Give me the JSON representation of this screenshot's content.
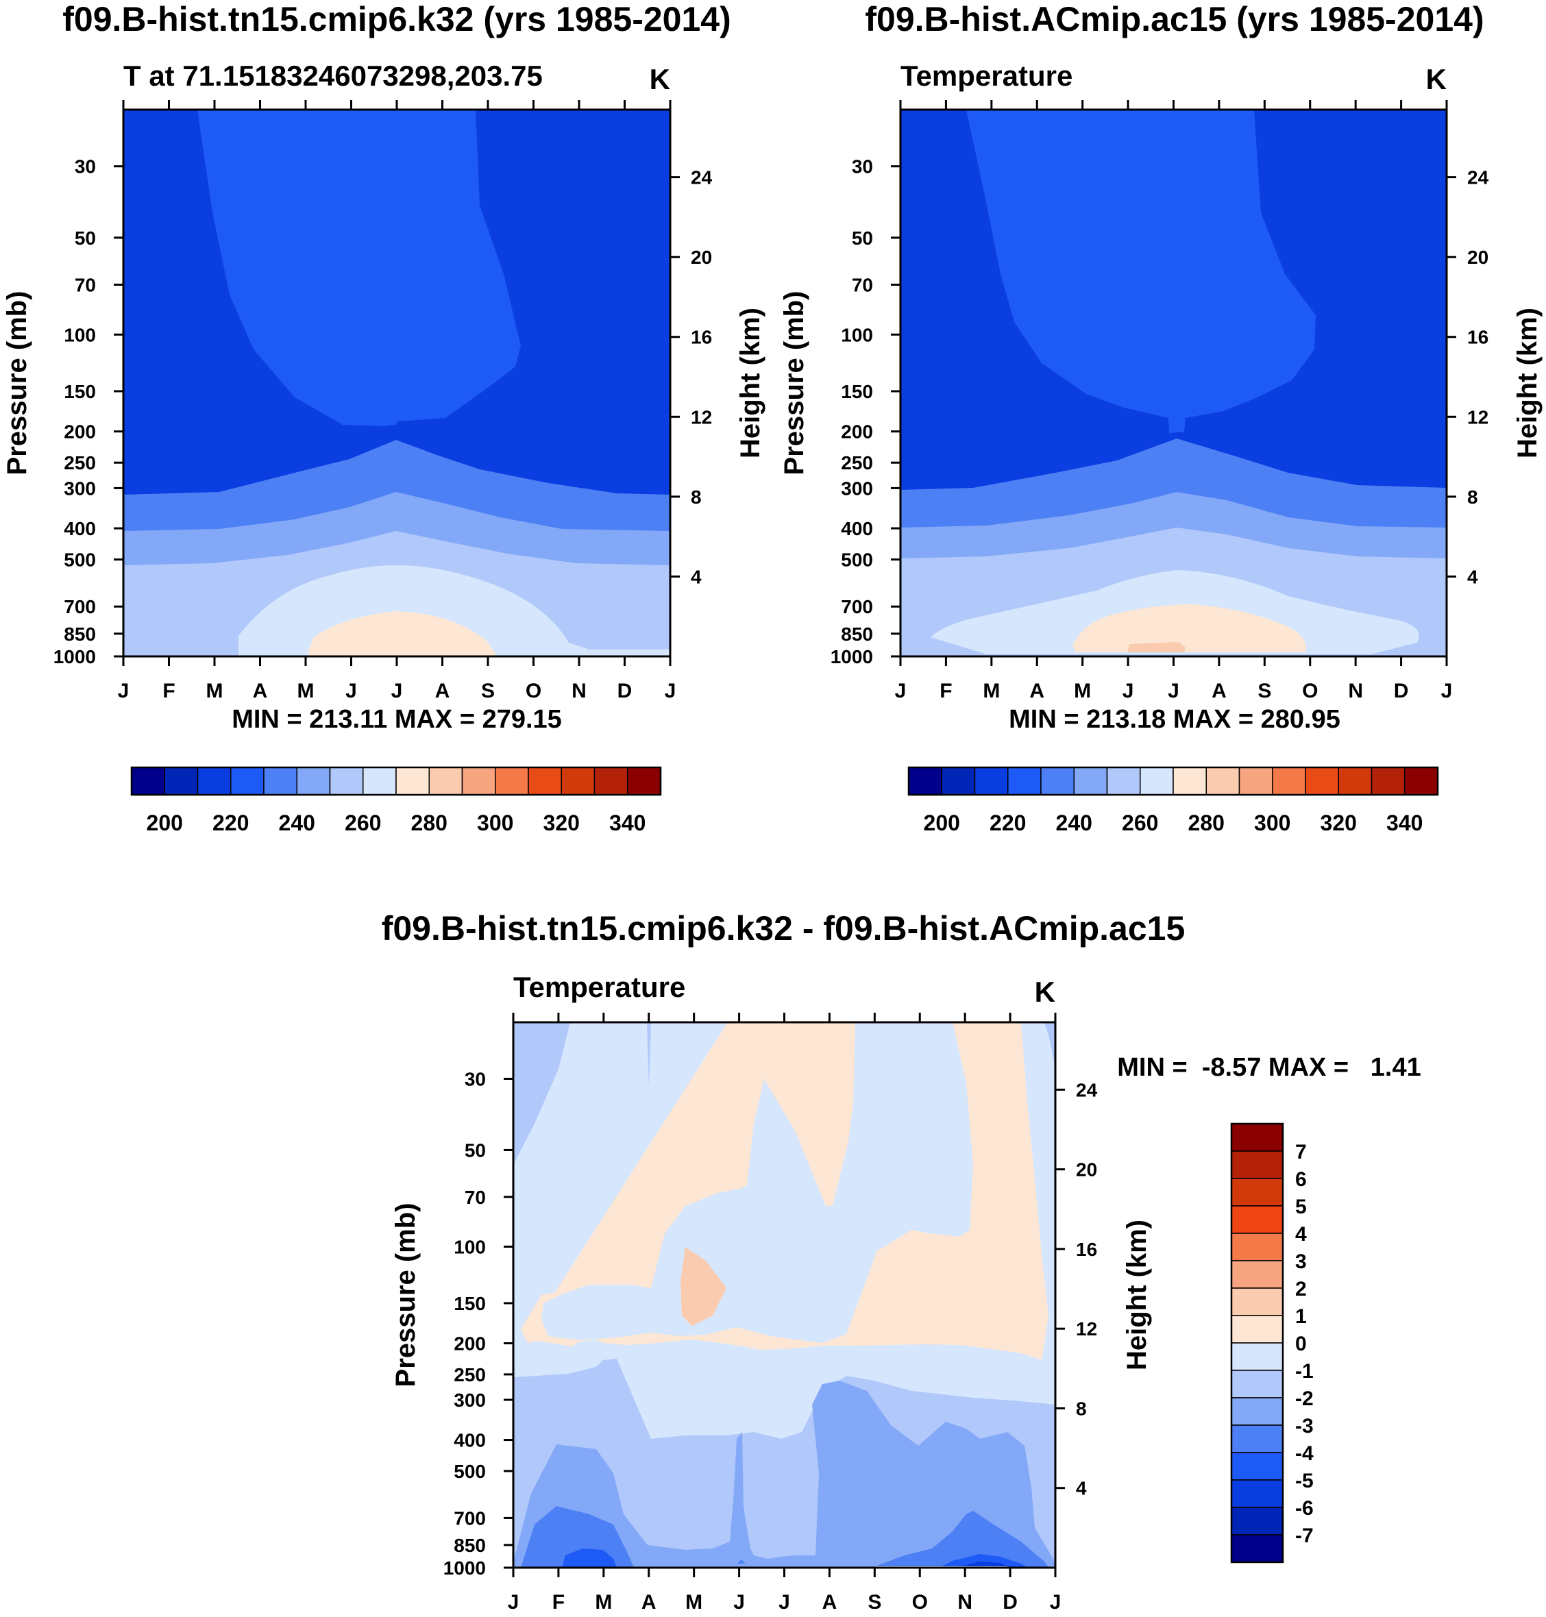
{
  "months": [
    "J",
    "F",
    "M",
    "A",
    "M",
    "J",
    "J",
    "A",
    "S",
    "O",
    "N",
    "D",
    "J"
  ],
  "pressure_ticks": [
    "30",
    "50",
    "70",
    "100",
    "150",
    "200",
    "250",
    "300",
    "400",
    "500",
    "700",
    "850",
    "1000"
  ],
  "pressure_values": [
    30,
    50,
    70,
    100,
    150,
    200,
    250,
    300,
    400,
    500,
    700,
    850,
    1000
  ],
  "height_ticks": [
    "24",
    "20",
    "16",
    "12",
    "8",
    "4"
  ],
  "height_values": [
    24,
    20,
    16,
    12,
    8,
    4
  ],
  "abs_palette": [
    "#00008b",
    "#0024b5",
    "#0a3ee0",
    "#1e5af5",
    "#4d80f5",
    "#82a8f7",
    "#b0c9fa",
    "#d6e6fc",
    "#fde7d4",
    "#fbcbaf",
    "#f7a481",
    "#f57a4a",
    "#e94b16",
    "#d23a0c",
    "#b32208",
    "#8b0000"
  ],
  "abs_cbar_labels": [
    "200",
    "220",
    "240",
    "260",
    "280",
    "300",
    "320",
    "340"
  ],
  "diff_palette": [
    "#00008b",
    "#0024b5",
    "#0a3ee0",
    "#1e5af5",
    "#4d80f5",
    "#82a8f7",
    "#b0c9fa",
    "#d6e6fc",
    "#fde7d4",
    "#fbcbaf",
    "#f7a481",
    "#f57a4a",
    "#f04515",
    "#d23a0c",
    "#b32208",
    "#8b0000"
  ],
  "diff_cbar_labels": [
    "7",
    "6",
    "5",
    "4",
    "3",
    "2",
    "1",
    "0",
    "-1",
    "-2",
    "-3",
    "-4",
    "-5",
    "-6",
    "-7"
  ],
  "panels": {
    "p1": {
      "title": "f09.B-hist.tn15.cmip6.k32 (yrs 1985-2014)",
      "left_label": "T at 71.15183246073298,203.75",
      "units": "K",
      "ylabel": "Pressure (mb)",
      "ylabel_right": "Height (km)",
      "stats": "MIN = 213.11 MAX = 279.15"
    },
    "p2": {
      "title": "f09.B-hist.ACmip.ac15 (yrs 1985-2014)",
      "left_label": "Temperature",
      "units": "K",
      "ylabel": "Pressure (mb)",
      "ylabel_right": "Height (km)",
      "stats": "MIN = 213.18 MAX = 280.95"
    },
    "p3": {
      "title": "f09.B-hist.tn15.cmip6.k32 - f09.B-hist.ACmip.ac15",
      "left_label": "Temperature",
      "units": "K",
      "ylabel": "Pressure (mb)",
      "ylabel_right": "Height (km)",
      "stats": "MIN =  -8.57 MAX =   1.41"
    }
  },
  "chart_data": [
    {
      "type": "heatmap",
      "title": "f09.B-hist.tn15.cmip6.k32 (yrs 1985-2014)",
      "variable": "T at 71.15183246073298,203.75",
      "units": "K",
      "xlabel": "",
      "ylabel": "Pressure (mb)",
      "y2label": "Height (km)",
      "x": [
        "J",
        "F",
        "M",
        "A",
        "M",
        "J",
        "J",
        "A",
        "S",
        "O",
        "N",
        "D",
        "J"
      ],
      "ylim": [
        1000,
        20
      ],
      "levels": [
        195,
        205,
        215,
        225,
        235,
        245,
        255,
        265,
        275,
        285,
        295,
        305,
        315,
        325,
        335
      ],
      "min": 213.11,
      "max": 279.15
    },
    {
      "type": "heatmap",
      "title": "f09.B-hist.ACmip.ac15 (yrs 1985-2014)",
      "variable": "Temperature",
      "units": "K",
      "xlabel": "",
      "ylabel": "Pressure (mb)",
      "y2label": "Height (km)",
      "x": [
        "J",
        "F",
        "M",
        "A",
        "M",
        "J",
        "J",
        "A",
        "S",
        "O",
        "N",
        "D",
        "J"
      ],
      "ylim": [
        1000,
        20
      ],
      "levels": [
        195,
        205,
        215,
        225,
        235,
        245,
        255,
        265,
        275,
        285,
        295,
        305,
        315,
        325,
        335
      ],
      "min": 213.18,
      "max": 280.95
    },
    {
      "type": "heatmap",
      "title": "f09.B-hist.tn15.cmip6.k32 - f09.B-hist.ACmip.ac15",
      "variable": "Temperature",
      "units": "K",
      "xlabel": "",
      "ylabel": "Pressure (mb)",
      "y2label": "Height (km)",
      "x": [
        "J",
        "F",
        "M",
        "A",
        "M",
        "J",
        "J",
        "A",
        "S",
        "O",
        "N",
        "D",
        "J"
      ],
      "ylim": [
        1000,
        20
      ],
      "levels": [
        -7,
        -6,
        -5,
        -4,
        -3,
        -2,
        -1,
        0,
        1,
        2,
        3,
        4,
        5,
        6,
        7
      ],
      "min": -8.57,
      "max": 1.41
    }
  ]
}
